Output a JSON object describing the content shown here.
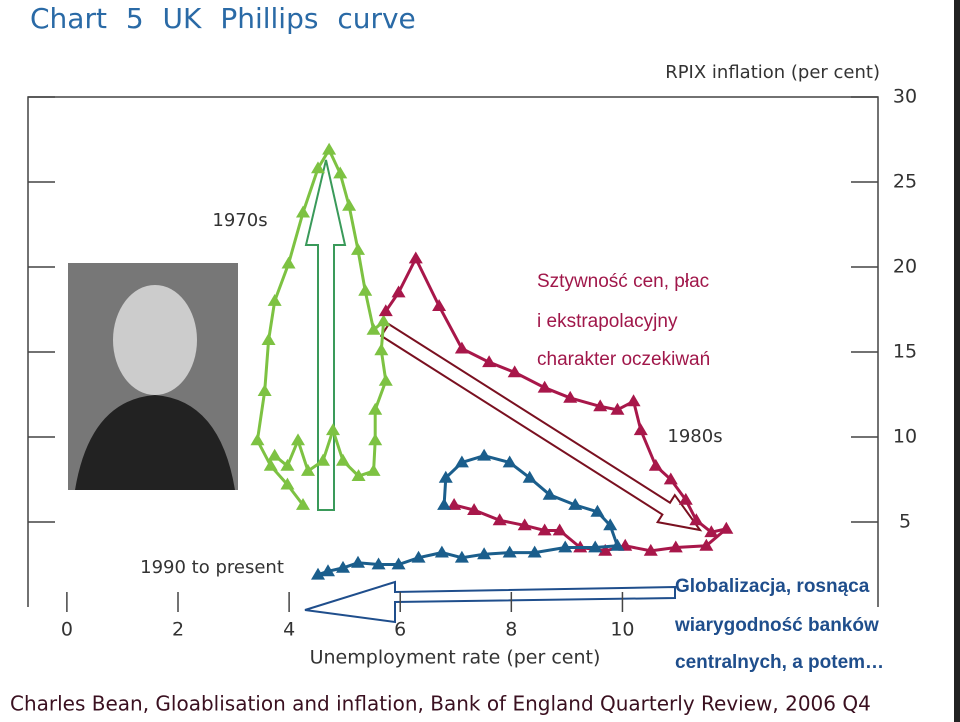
{
  "chart_data": {
    "type": "line",
    "title": "Chart 5 UK Phillips curve",
    "y_label": "RPIX inflation (per cent)",
    "x_label": "Unemployment rate (per cent)",
    "xlim": [
      -0.7,
      14.6
    ],
    "ylim": [
      0,
      30
    ],
    "xticks": [
      0,
      2,
      4,
      6,
      8,
      10
    ],
    "yticks": [
      5,
      10,
      15,
      20,
      25,
      30
    ],
    "marker": "triangle",
    "series": [
      {
        "name": "1970s",
        "color": "#7dc242",
        "x": [
          4.25,
          3.97,
          3.67,
          3.43,
          3.56,
          3.63,
          3.74,
          3.99,
          4.25,
          4.52,
          4.72,
          4.92,
          5.08,
          5.24,
          5.37,
          5.52,
          5.7,
          5.66,
          5.74,
          5.55,
          5.55,
          5.52,
          5.25,
          4.97,
          4.79,
          4.61,
          4.34,
          4.16,
          3.97,
          3.74
        ],
        "values": [
          6.0,
          7.2,
          8.3,
          9.8,
          12.7,
          15.7,
          18.0,
          20.2,
          23.2,
          25.8,
          26.9,
          25.5,
          23.6,
          21.0,
          18.6,
          16.3,
          16.8,
          15.1,
          13.3,
          11.6,
          9.8,
          8.0,
          7.7,
          8.6,
          10.4,
          8.6,
          8.0,
          9.8,
          8.3,
          8.9
        ]
      },
      {
        "name": "1980s",
        "color": "#a8174a",
        "x": [
          5.74,
          5.97,
          6.28,
          6.7,
          7.11,
          7.6,
          8.06,
          8.6,
          9.06,
          9.6,
          9.91,
          10.2,
          10.33,
          10.6,
          10.87,
          11.14,
          11.33,
          11.6,
          11.87,
          11.51,
          10.96,
          10.51,
          10.05,
          9.69,
          9.24,
          8.87,
          8.6,
          8.24,
          7.79,
          7.33,
          6.97
        ],
        "values": [
          17.4,
          18.5,
          20.5,
          17.7,
          15.2,
          14.4,
          13.8,
          12.9,
          12.3,
          11.8,
          11.6,
          12.1,
          10.4,
          8.3,
          7.5,
          6.3,
          5.1,
          4.4,
          4.6,
          3.6,
          3.5,
          3.3,
          3.6,
          3.3,
          3.5,
          4.5,
          4.5,
          4.8,
          5.1,
          5.7,
          6.0
        ]
      },
      {
        "name": "1990 to present",
        "color": "#1b5e8c",
        "x": [
          6.79,
          6.82,
          7.11,
          7.51,
          7.97,
          8.33,
          8.69,
          9.15,
          9.55,
          9.78,
          9.91,
          9.51,
          8.97,
          8.42,
          7.97,
          7.51,
          7.11,
          6.75,
          6.33,
          5.97,
          5.61,
          5.24,
          4.97,
          4.7,
          4.52
        ],
        "values": [
          6.0,
          7.6,
          8.5,
          8.9,
          8.5,
          7.6,
          6.6,
          6.0,
          5.6,
          4.8,
          3.6,
          3.5,
          3.5,
          3.2,
          3.2,
          3.1,
          2.9,
          3.2,
          2.9,
          2.5,
          2.5,
          2.6,
          2.3,
          2.1,
          1.9
        ]
      }
    ],
    "annotations": [
      {
        "text": "Sztywność cen, płac",
        "color": "#a0174a"
      },
      {
        "text": "i ekstrapolacyjny",
        "color": "#a0174a"
      },
      {
        "text": "charakter oczekiwań",
        "color": "#a0174a"
      },
      {
        "text": "Globalizacja, rosnąca",
        "color": "#1f4e8c"
      },
      {
        "text": "wiarygodność banków",
        "color": "#1f4e8c"
      },
      {
        "text": "centralnych, a potem…",
        "color": "#1f4e8c"
      }
    ],
    "source": "Charles Bean, Gloablisation and inflation, Bank of England Quarterly Review, 2006 Q4"
  }
}
